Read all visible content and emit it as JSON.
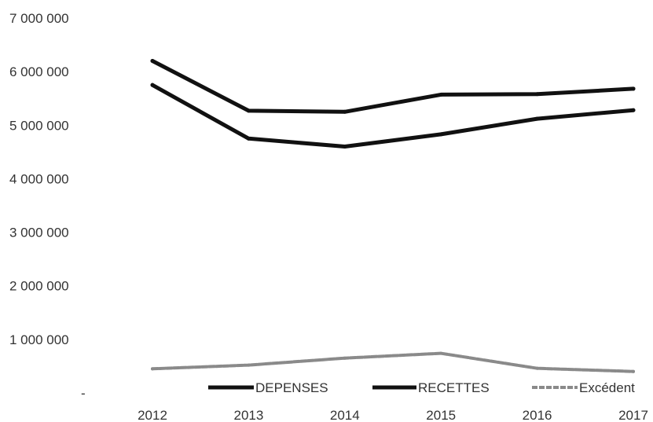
{
  "chart_data": {
    "type": "line",
    "title": "",
    "xlabel": "",
    "ylabel": "",
    "categories": [
      "2012",
      "2013",
      "2014",
      "2015",
      "2016",
      "2017"
    ],
    "y_tick_labels": [
      "-",
      "1 000 000",
      "2 000 000",
      "3 000 000",
      "4 000 000",
      "5 000 000",
      "6 000 000",
      "7 000 000"
    ],
    "ylim": [
      0,
      7000000
    ],
    "grid": false,
    "legend_position": "bottom",
    "series": [
      {
        "name": "DEPENSES",
        "values": [
          5750000,
          4750000,
          4600000,
          4830000,
          5120000,
          5280000
        ],
        "color": "#111111"
      },
      {
        "name": "RECETTES",
        "values": [
          6200000,
          5270000,
          5250000,
          5570000,
          5580000,
          5680000
        ],
        "color": "#111111"
      },
      {
        "name": "Excédent",
        "values": [
          450000,
          520000,
          650000,
          740000,
          460000,
          400000
        ],
        "color": "#8a8a8a"
      }
    ]
  }
}
